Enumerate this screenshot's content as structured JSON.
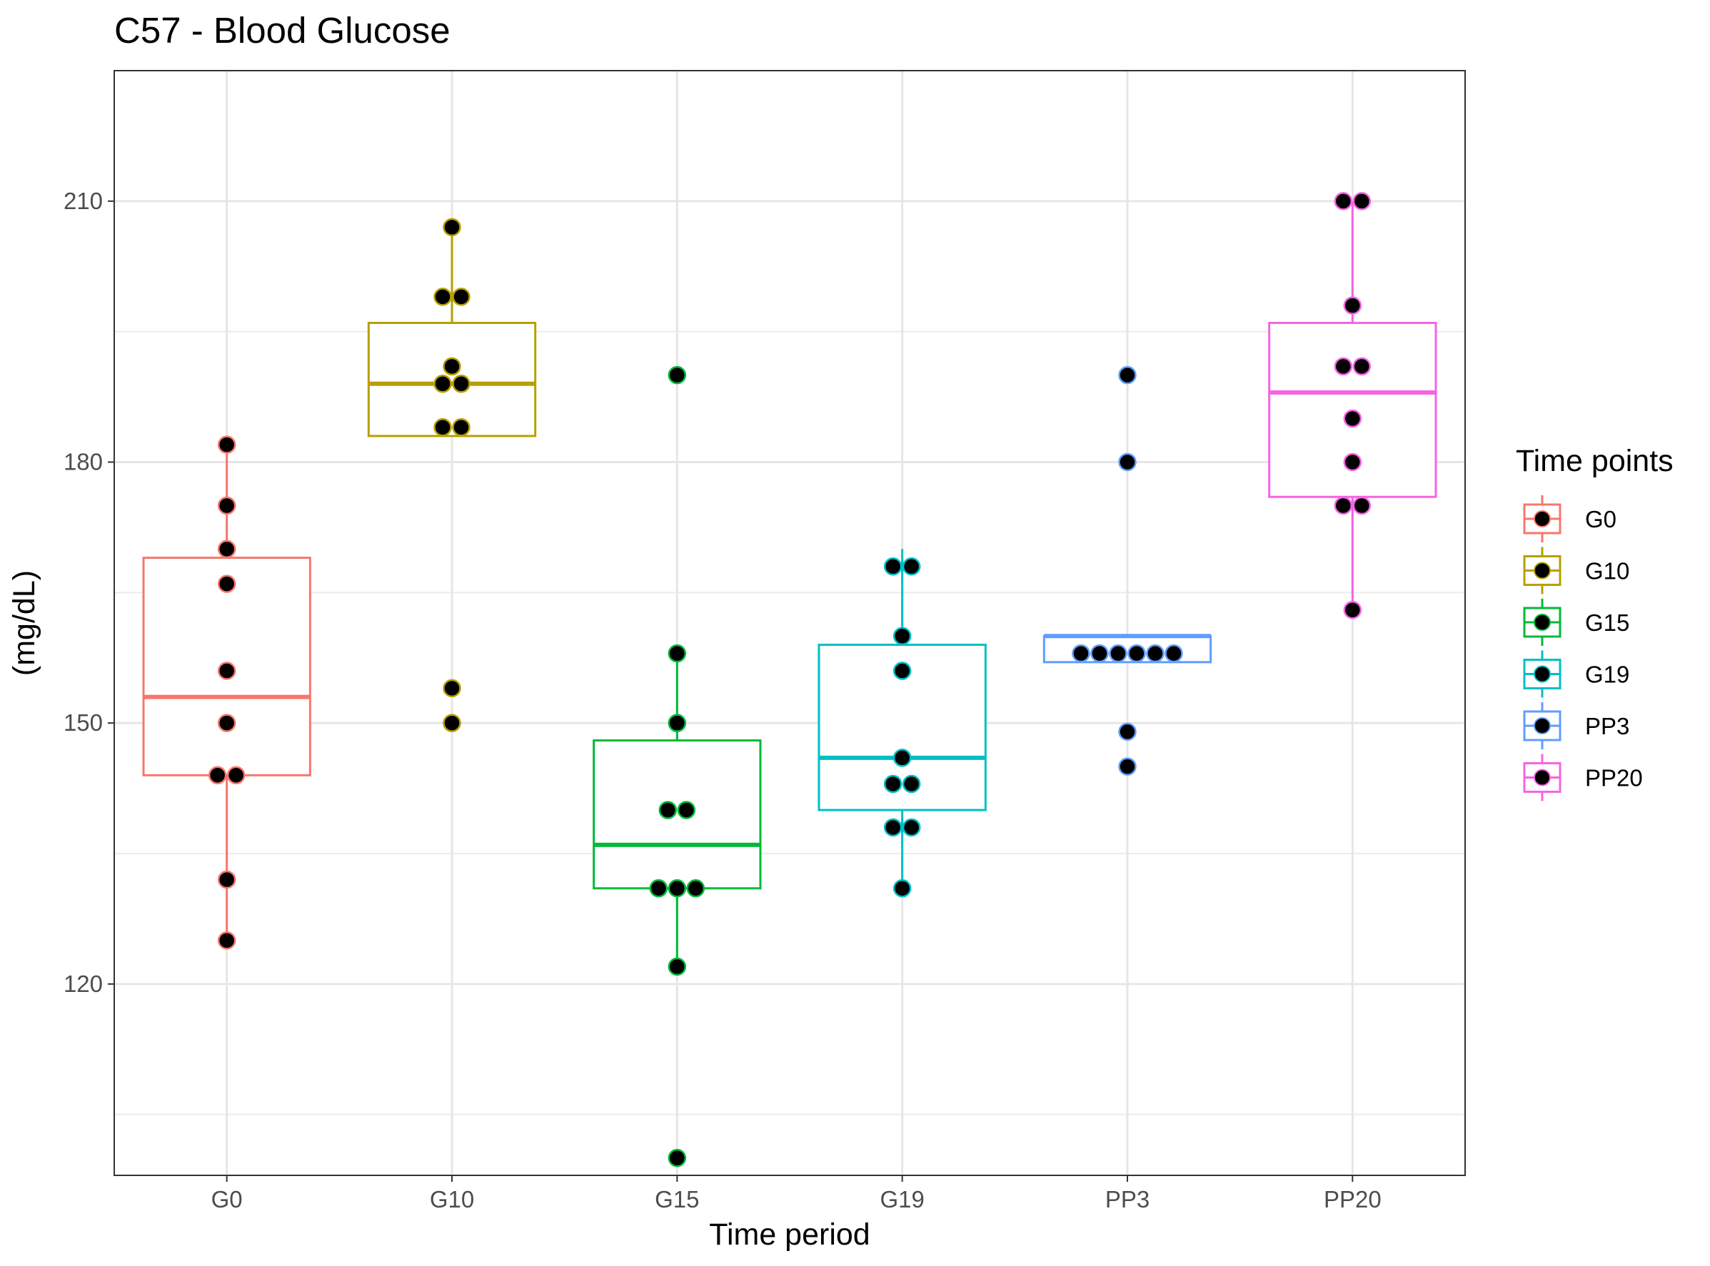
{
  "chart_data": {
    "type": "box",
    "title": "C57 - Blood Glucose",
    "xlabel": "Time period",
    "ylabel": "(mg/dL)",
    "ylim": [
      98,
      225
    ],
    "yticks": [
      120,
      150,
      180,
      210
    ],
    "ytick_labels": [
      "120",
      "150",
      "180",
      "210"
    ],
    "categories": [
      "G0",
      "G10",
      "G15",
      "G19",
      "PP3",
      "PP20"
    ],
    "grid": true,
    "legend": {
      "title": "Time points",
      "placement": "right"
    },
    "series": [
      {
        "name": "G0",
        "color": "#F8766D",
        "box": {
          "q1": 144,
          "median": 153,
          "q3": 169,
          "whisker_low": 125,
          "whisker_high": 182
        },
        "points": [
          182,
          175,
          170,
          166,
          156,
          150,
          144,
          144,
          132,
          125
        ]
      },
      {
        "name": "G10",
        "color": "#B79F00",
        "box": {
          "q1": 183,
          "median": 189,
          "q3": 196,
          "whisker_low": 183,
          "whisker_high": 207
        },
        "points": [
          207,
          199,
          199,
          191,
          189,
          189,
          184,
          184,
          154,
          150
        ]
      },
      {
        "name": "G15",
        "color": "#00BA38",
        "box": {
          "q1": 131,
          "median": 136,
          "q3": 148,
          "whisker_low": 122,
          "whisker_high": 158
        },
        "points": [
          190,
          158,
          150,
          140,
          140,
          131,
          131,
          131,
          122,
          100
        ]
      },
      {
        "name": "G19",
        "color": "#00BFC4",
        "box": {
          "q1": 140,
          "median": 146,
          "q3": 159,
          "whisker_low": 131,
          "whisker_high": 170
        },
        "points": [
          168,
          168,
          160,
          156,
          146,
          143,
          143,
          138,
          138,
          131
        ]
      },
      {
        "name": "PP3",
        "color": "#619CFF",
        "box": {
          "q1": 157,
          "median": 160,
          "q3": 160,
          "whisker_low": 157,
          "whisker_high": 160
        },
        "points": [
          190,
          180,
          158,
          158,
          158,
          158,
          158,
          158,
          149,
          145
        ]
      },
      {
        "name": "PP20",
        "color": "#F564E3",
        "box": {
          "q1": 176,
          "median": 188,
          "q3": 196,
          "whisker_low": 163,
          "whisker_high": 210
        },
        "points": [
          210,
          210,
          198,
          191,
          191,
          185,
          180,
          175,
          175,
          163
        ]
      }
    ]
  }
}
